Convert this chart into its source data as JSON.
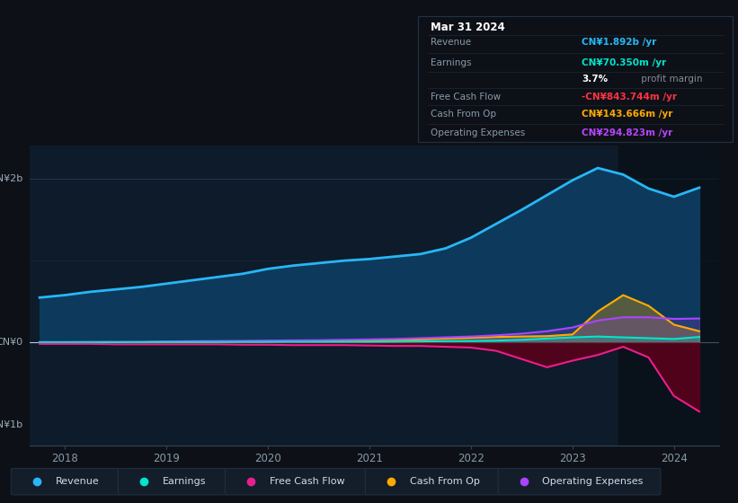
{
  "background_color": "#0d1117",
  "plot_bg_color": "#0d1b2a",
  "title": "Mar 31 2024",
  "x_years": [
    2017.75,
    2018.0,
    2018.25,
    2018.5,
    2018.75,
    2019.0,
    2019.25,
    2019.5,
    2019.75,
    2020.0,
    2020.25,
    2020.5,
    2020.75,
    2021.0,
    2021.25,
    2021.5,
    2021.75,
    2022.0,
    2022.25,
    2022.5,
    2022.75,
    2023.0,
    2023.25,
    2023.5,
    2023.75,
    2024.0,
    2024.25
  ],
  "revenue": [
    0.55,
    0.58,
    0.62,
    0.65,
    0.68,
    0.72,
    0.76,
    0.8,
    0.84,
    0.9,
    0.94,
    0.97,
    1.0,
    1.02,
    1.05,
    1.08,
    1.15,
    1.28,
    1.45,
    1.62,
    1.8,
    1.98,
    2.13,
    2.05,
    1.88,
    1.78,
    1.89
  ],
  "earnings": [
    0.005,
    0.005,
    0.006,
    0.006,
    0.007,
    0.008,
    0.008,
    0.008,
    0.009,
    0.009,
    0.01,
    0.01,
    0.01,
    0.01,
    0.012,
    0.015,
    0.018,
    0.02,
    0.025,
    0.035,
    0.05,
    0.065,
    0.075,
    0.065,
    0.055,
    0.045,
    0.07
  ],
  "free_cash_flow": [
    -0.015,
    -0.015,
    -0.015,
    -0.02,
    -0.02,
    -0.02,
    -0.02,
    -0.02,
    -0.025,
    -0.025,
    -0.03,
    -0.03,
    -0.03,
    -0.035,
    -0.04,
    -0.04,
    -0.05,
    -0.06,
    -0.1,
    -0.2,
    -0.3,
    -0.22,
    -0.15,
    -0.05,
    -0.18,
    -0.65,
    -0.84
  ],
  "cash_from_op": [
    0.003,
    0.003,
    0.004,
    0.005,
    0.005,
    0.008,
    0.01,
    0.012,
    0.014,
    0.015,
    0.018,
    0.02,
    0.022,
    0.025,
    0.03,
    0.04,
    0.05,
    0.06,
    0.07,
    0.075,
    0.08,
    0.1,
    0.38,
    0.58,
    0.45,
    0.22,
    0.14
  ],
  "operating_expenses": [
    0.008,
    0.008,
    0.009,
    0.01,
    0.01,
    0.015,
    0.018,
    0.02,
    0.022,
    0.025,
    0.028,
    0.03,
    0.035,
    0.04,
    0.045,
    0.055,
    0.065,
    0.075,
    0.09,
    0.11,
    0.14,
    0.185,
    0.27,
    0.31,
    0.31,
    0.29,
    0.295
  ],
  "revenue_color": "#29b6f6",
  "revenue_fill": "#0d3a5c",
  "earnings_color": "#00e5cc",
  "free_cash_flow_color": "#e91e8c",
  "free_cash_flow_fill_neg": "#5c001a",
  "cash_from_op_color": "#ffaa00",
  "cash_from_op_fill_pos": "#3d2800",
  "operating_expenses_color": "#aa44ff",
  "tooltip_bg": "#040a0f",
  "tooltip_border": "#1a2a3a",
  "tooltip_title_color": "#ffffff",
  "tooltip_label_color": "#8899aa",
  "tooltip_revenue_color": "#29b6f6",
  "tooltip_earnings_color": "#00e5cc",
  "tooltip_fcf_color": "#ff3344",
  "tooltip_cfo_color": "#ffaa00",
  "tooltip_opex_color": "#bb44ff",
  "tooltip_margin_color": "#ffffff",
  "tooltip_margin_label_color": "#888899",
  "xticks": [
    2018,
    2019,
    2020,
    2021,
    2022,
    2023,
    2024
  ],
  "ylim": [
    -1.25,
    2.4
  ],
  "legend": [
    {
      "label": "Revenue",
      "color": "#29b6f6"
    },
    {
      "label": "Earnings",
      "color": "#00e5cc"
    },
    {
      "label": "Free Cash Flow",
      "color": "#e91e8c"
    },
    {
      "label": "Cash From Op",
      "color": "#ffaa00"
    },
    {
      "label": "Operating Expenses",
      "color": "#aa44ff"
    }
  ]
}
